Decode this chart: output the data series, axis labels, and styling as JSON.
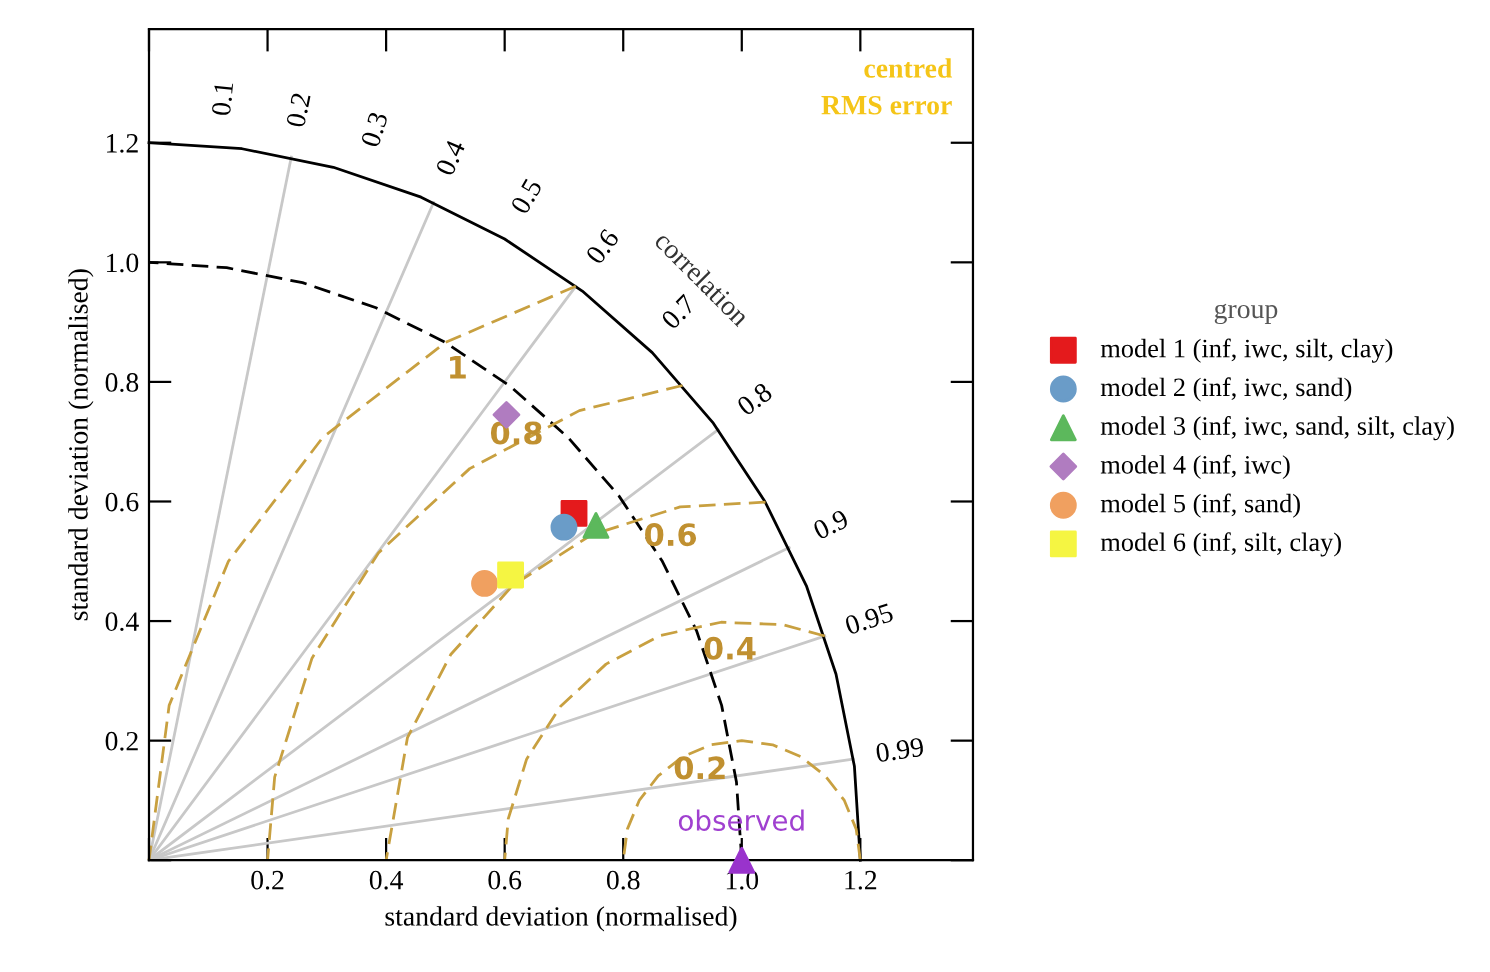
{
  "chart_data": {
    "type": "scatter",
    "xlabel": "standard deviation (normalised)",
    "ylabel": "standard deviation (normalised)",
    "legend_title": "group",
    "legend": "right",
    "grid": false,
    "xlim": [
      0,
      1.39
    ],
    "ylim": [
      0,
      1.39
    ],
    "xticks": [
      {
        "value": 0,
        "label": null
      },
      0.2,
      0.4,
      0.6,
      0.8,
      {
        "value": 1,
        "label": "1.0"
      },
      1.2
    ],
    "yticks": [
      {
        "value": 0,
        "label": null
      },
      0.2,
      0.4,
      0.6,
      0.8,
      {
        "value": 1,
        "label": "1.0"
      },
      1.2
    ],
    "series": [
      {
        "type": "line",
        "color": "#c8c8c8",
        "line_style": "solid",
        "x": [
          0,
          0.24
        ],
        "values": [
          0,
          1.176
        ]
      },
      {
        "type": "line",
        "color": "#c8c8c8",
        "line_style": "solid",
        "x": [
          0,
          0.48
        ],
        "values": [
          0,
          1.1
        ]
      },
      {
        "type": "line",
        "color": "#c8c8c8",
        "line_style": "solid",
        "x": [
          0,
          0.72
        ],
        "values": [
          0,
          0.96
        ]
      },
      {
        "type": "line",
        "color": "#c8c8c8",
        "line_style": "solid",
        "x": [
          0,
          0.96
        ],
        "values": [
          0,
          0.72
        ]
      },
      {
        "type": "line",
        "color": "#c8c8c8",
        "line_style": "solid",
        "x": [
          0,
          1.08
        ],
        "values": [
          0,
          0.523
        ]
      },
      {
        "type": "line",
        "color": "#c8c8c8",
        "line_style": "solid",
        "x": [
          0,
          1.14
        ],
        "values": [
          0,
          0.375
        ]
      },
      {
        "type": "line",
        "color": "#c8c8c8",
        "line_style": "solid",
        "x": [
          0,
          1.188
        ],
        "values": [
          0,
          0.169
        ]
      },
      {
        "type": "line",
        "color": "#000000",
        "line_style": "solid",
        "x": [
          1.2,
          1.19,
          1.159,
          1.109,
          1.039,
          0.952,
          0.849,
          0.731,
          0.6,
          0.459,
          0.311,
          0.157,
          0
        ],
        "values": [
          0,
          0.157,
          0.311,
          0.459,
          0.6,
          0.731,
          0.849,
          0.952,
          1.039,
          1.109,
          1.159,
          1.19,
          1.2
        ]
      },
      {
        "type": "line",
        "color": "#000000",
        "line_style": "dashed",
        "x": [
          1,
          0.991,
          0.966,
          0.924,
          0.866,
          0.793,
          0.707,
          0.609,
          0.5,
          0.383,
          0.259,
          0.131,
          0
        ],
        "values": [
          0,
          0.131,
          0.259,
          0.383,
          0.5,
          0.609,
          0.707,
          0.793,
          0.866,
          0.924,
          0.966,
          0.991,
          1
        ]
      },
      {
        "type": "line",
        "color": "#c8a040",
        "line_style": "dashed",
        "x": [
          1.2,
          1.193,
          1.173,
          1.141,
          1.1,
          1.052,
          1,
          0.948,
          0.9,
          0.859,
          0.827,
          0.807,
          0.8
        ],
        "values": [
          0,
          0.052,
          0.1,
          0.141,
          0.173,
          0.193,
          0.2,
          0.193,
          0.173,
          0.141,
          0.1,
          0.052,
          0
        ]
      },
      {
        "type": "line",
        "color": "#c8a040",
        "line_style": "dashed",
        "x": [
          1.14,
          1.069,
          0.965,
          0.863,
          0.771,
          0.694,
          0.637,
          0.606,
          0.6
        ],
        "values": [
          0.375,
          0.394,
          0.398,
          0.376,
          0.328,
          0.257,
          0.169,
          0.069,
          0
        ]
      },
      {
        "type": "line",
        "color": "#c8a040",
        "line_style": "dashed",
        "x": [
          1.04,
          0.896,
          0.746,
          0.614,
          0.509,
          0.436,
          0.4
        ],
        "values": [
          0.599,
          0.591,
          0.544,
          0.46,
          0.344,
          0.205,
          0
        ]
      },
      {
        "type": "line",
        "color": "#c8a040",
        "line_style": "dashed",
        "x": [
          0.9,
          0.726,
          0.541,
          0.387,
          0.275,
          0.212,
          0.2
        ],
        "values": [
          0.794,
          0.752,
          0.655,
          0.514,
          0.338,
          0.139,
          0
        ]
      },
      {
        "type": "line",
        "color": "#c8a040",
        "line_style": "dashed",
        "x": [
          0.72,
          0.5,
          0.293,
          0.134,
          0.034,
          0
        ],
        "values": [
          0.96,
          0.866,
          0.707,
          0.5,
          0.259,
          0
        ]
      },
      {
        "color": "#9933cc",
        "marker": "triangle",
        "x": [
          1.0
        ],
        "values": [
          0.0
        ]
      },
      {
        "name": "model 1 (inf, iwc, silt, clay)",
        "color": "#e41a1c",
        "marker": "square",
        "x": [
          0.717
        ],
        "values": [
          0.58
        ]
      },
      {
        "name": "model 2 (inf, iwc, sand)",
        "color": "#6a9cc8",
        "marker": "circle",
        "x": [
          0.7
        ],
        "values": [
          0.557
        ]
      },
      {
        "name": "model 3 (inf, iwc, sand, silt, clay)",
        "color": "#5cb85c",
        "marker": "triangle",
        "x": [
          0.754
        ],
        "values": [
          0.56
        ]
      },
      {
        "name": "model 4 (inf, iwc)",
        "color": "#b07cc0",
        "marker": "diamond",
        "x": [
          0.603
        ],
        "values": [
          0.745
        ]
      },
      {
        "name": "model 5 (inf, sand)",
        "color": "#f0a060",
        "marker": "circle",
        "x": [
          0.566
        ],
        "values": [
          0.463
        ]
      },
      {
        "name": "model 6 (inf, silt, clay)",
        "color": "#f5f542",
        "marker": "square",
        "x": [
          0.61
        ],
        "values": [
          0.477
        ]
      }
    ],
    "annotations": [
      "centred\nRMS error",
      "0.1",
      "0.2",
      "0.3",
      "0.4",
      "0.5",
      "0.6",
      "0.7",
      "0.8",
      "0.9",
      "0.95",
      "0.99",
      "correlation",
      "1",
      "0.8",
      "0.6",
      "0.4",
      "0.2",
      {
        "text": "observed",
        "x": 1.0,
        "y": 0.04
      }
    ]
  }
}
